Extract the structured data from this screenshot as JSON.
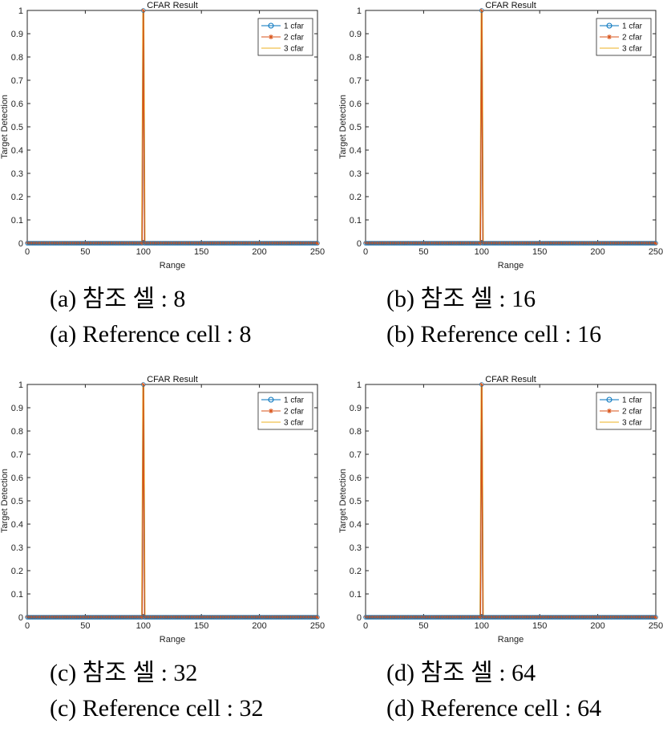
{
  "chart_data": [
    {
      "type": "line",
      "panel": "a",
      "title": "CFAR Result",
      "xlabel": "Range",
      "ylabel": "Target Detection",
      "xlim": [
        0,
        250
      ],
      "ylim": [
        0,
        1
      ],
      "xticks": [
        0,
        50,
        100,
        150,
        200,
        250
      ],
      "yticks": [
        0,
        0.1,
        0.2,
        0.3,
        0.4,
        0.5,
        0.6,
        0.7,
        0.8,
        0.9,
        1
      ],
      "grid": false,
      "legend_position": "top-right",
      "series": [
        {
          "name": "1 cfar",
          "color": "#0072BD",
          "marker": "circle",
          "x": [
            0,
            99,
            100,
            101,
            250
          ],
          "y": [
            0,
            0,
            1,
            0,
            0
          ]
        },
        {
          "name": "2 cfar",
          "color": "#D95319",
          "marker": "asterisk",
          "x": [
            0,
            99,
            100,
            101,
            250
          ],
          "y": [
            0,
            0,
            1,
            0,
            0
          ]
        },
        {
          "name": "3 cfar",
          "color": "#EDB120",
          "marker": "none",
          "x": [
            0,
            98.5,
            99.5,
            100.5,
            101.5,
            250
          ],
          "y": [
            0,
            0,
            1,
            1,
            0,
            0
          ]
        }
      ],
      "caption_kr": "(a) 참조 셀 : 8",
      "caption_en": "(a) Reference cell : 8"
    },
    {
      "type": "line",
      "panel": "b",
      "title": "CFAR Result",
      "xlabel": "Range",
      "ylabel": "Target Detection",
      "xlim": [
        0,
        250
      ],
      "ylim": [
        0,
        1
      ],
      "xticks": [
        0,
        50,
        100,
        150,
        200,
        250
      ],
      "yticks": [
        0,
        0.1,
        0.2,
        0.3,
        0.4,
        0.5,
        0.6,
        0.7,
        0.8,
        0.9,
        1
      ],
      "grid": false,
      "legend_position": "top-right",
      "series": [
        {
          "name": "1 cfar",
          "color": "#0072BD",
          "marker": "circle",
          "x": [
            0,
            99,
            100,
            101,
            250
          ],
          "y": [
            0,
            0,
            1,
            0,
            0
          ]
        },
        {
          "name": "2 cfar",
          "color": "#D95319",
          "marker": "asterisk",
          "x": [
            0,
            99,
            100,
            101,
            250
          ],
          "y": [
            0,
            0,
            1,
            0,
            0
          ]
        },
        {
          "name": "3 cfar",
          "color": "#EDB120",
          "marker": "none",
          "x": [
            0,
            98.5,
            99.5,
            100.5,
            101.5,
            250
          ],
          "y": [
            0,
            0,
            1,
            1,
            0,
            0
          ]
        }
      ],
      "caption_kr": "(b) 참조 셀 : 16",
      "caption_en": "(b) Reference cell : 16"
    },
    {
      "type": "line",
      "panel": "c",
      "title": "CFAR Result",
      "xlabel": "Range",
      "ylabel": "Target Detection",
      "xlim": [
        0,
        250
      ],
      "ylim": [
        0,
        1
      ],
      "xticks": [
        0,
        50,
        100,
        150,
        200,
        250
      ],
      "yticks": [
        0,
        0.1,
        0.2,
        0.3,
        0.4,
        0.5,
        0.6,
        0.7,
        0.8,
        0.9,
        1
      ],
      "grid": false,
      "legend_position": "top-right",
      "series": [
        {
          "name": "1 cfar",
          "color": "#0072BD",
          "marker": "circle",
          "x": [
            0,
            99,
            100,
            101,
            250
          ],
          "y": [
            0,
            0,
            1,
            0,
            0
          ]
        },
        {
          "name": "2 cfar",
          "color": "#D95319",
          "marker": "asterisk",
          "x": [
            0,
            99,
            100,
            101,
            250
          ],
          "y": [
            0,
            0,
            1,
            0,
            0
          ]
        },
        {
          "name": "3 cfar",
          "color": "#EDB120",
          "marker": "none",
          "x": [
            0,
            98.5,
            99.5,
            100.5,
            101.5,
            250
          ],
          "y": [
            0,
            0,
            1,
            1,
            0,
            0
          ]
        }
      ],
      "caption_kr": "(c) 참조 셀 : 32",
      "caption_en": "(c) Reference cell : 32"
    },
    {
      "type": "line",
      "panel": "d",
      "title": "CFAR Result",
      "xlabel": "Range",
      "ylabel": "Target Detection",
      "xlim": [
        0,
        250
      ],
      "ylim": [
        0,
        1
      ],
      "xticks": [
        0,
        50,
        100,
        150,
        200,
        250
      ],
      "yticks": [
        0,
        0.1,
        0.2,
        0.3,
        0.4,
        0.5,
        0.6,
        0.7,
        0.8,
        0.9,
        1
      ],
      "grid": false,
      "legend_position": "top-right",
      "series": [
        {
          "name": "1 cfar",
          "color": "#0072BD",
          "marker": "circle",
          "x": [
            0,
            99,
            100,
            101,
            250
          ],
          "y": [
            0,
            0,
            1,
            0,
            0
          ]
        },
        {
          "name": "2 cfar",
          "color": "#D95319",
          "marker": "asterisk",
          "x": [
            0,
            99,
            100,
            101,
            250
          ],
          "y": [
            0,
            0,
            1,
            0,
            0
          ]
        },
        {
          "name": "3 cfar",
          "color": "#EDB120",
          "marker": "none",
          "x": [
            0,
            98.5,
            99.5,
            100.5,
            101.5,
            250
          ],
          "y": [
            0,
            0,
            1,
            1,
            0,
            0
          ]
        }
      ],
      "caption_kr": "(d) 참조 셀 : 64",
      "caption_en": "(d) Reference cell : 64"
    }
  ]
}
